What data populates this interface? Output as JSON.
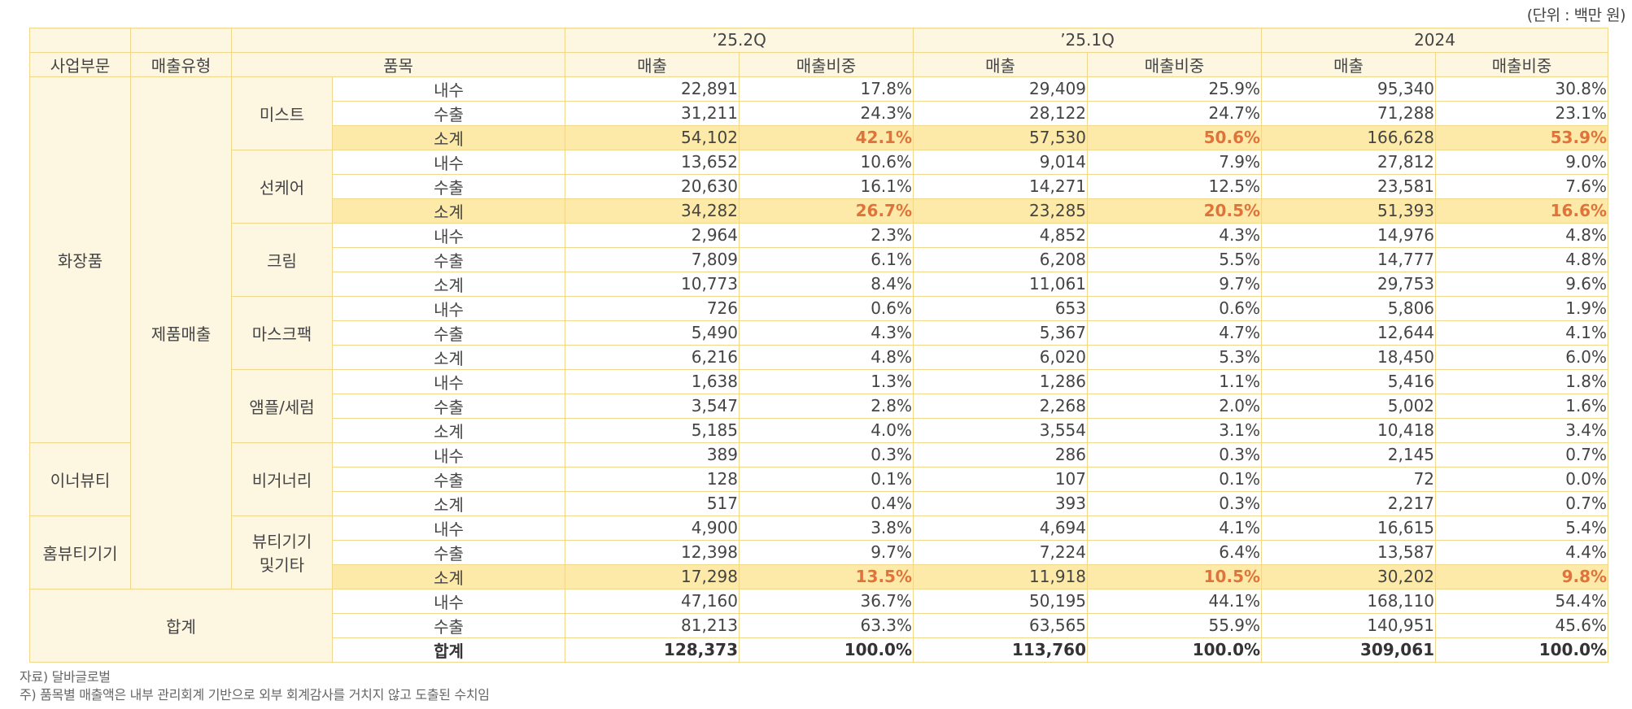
{
  "unit_note": "(단위 : 백만 원)",
  "headers": {
    "segment": "사업부문",
    "sales_type": "매출유형",
    "item": "품목",
    "periods": [
      "’25.2Q",
      "’25.1Q",
      "2024"
    ],
    "sales": "매출",
    "share": "매출비중"
  },
  "segments": {
    "cosmetics": "화장품",
    "inner_beauty": "이너뷰티",
    "home_beauty": "홈뷰티기기",
    "total": "합계"
  },
  "sales_type_value": "제품매출",
  "row_labels": {
    "domestic": "내수",
    "export": "수출",
    "subtotal": "소계",
    "total": "합계"
  },
  "groups": [
    {
      "name": "미스트",
      "highlight": true,
      "rows": [
        {
          "label": "내수",
          "v": [
            "22,891",
            "17.8%",
            "29,409",
            "25.9%",
            "95,340",
            "30.8%"
          ]
        },
        {
          "label": "수출",
          "v": [
            "31,211",
            "24.3%",
            "28,122",
            "24.7%",
            "71,288",
            "23.1%"
          ]
        },
        {
          "label": "소계",
          "v": [
            "54,102",
            "42.1%",
            "57,530",
            "50.6%",
            "166,628",
            "53.9%"
          ]
        }
      ]
    },
    {
      "name": "선케어",
      "highlight": true,
      "rows": [
        {
          "label": "내수",
          "v": [
            "13,652",
            "10.6%",
            "9,014",
            "7.9%",
            "27,812",
            "9.0%"
          ]
        },
        {
          "label": "수출",
          "v": [
            "20,630",
            "16.1%",
            "14,271",
            "12.5%",
            "23,581",
            "7.6%"
          ]
        },
        {
          "label": "소계",
          "v": [
            "34,282",
            "26.7%",
            "23,285",
            "20.5%",
            "51,393",
            "16.6%"
          ]
        }
      ]
    },
    {
      "name": "크림",
      "highlight": false,
      "rows": [
        {
          "label": "내수",
          "v": [
            "2,964",
            "2.3%",
            "4,852",
            "4.3%",
            "14,976",
            "4.8%"
          ]
        },
        {
          "label": "수출",
          "v": [
            "7,809",
            "6.1%",
            "6,208",
            "5.5%",
            "14,777",
            "4.8%"
          ]
        },
        {
          "label": "소계",
          "v": [
            "10,773",
            "8.4%",
            "11,061",
            "9.7%",
            "29,753",
            "9.6%"
          ]
        }
      ]
    },
    {
      "name": "마스크팩",
      "highlight": false,
      "rows": [
        {
          "label": "내수",
          "v": [
            "726",
            "0.6%",
            "653",
            "0.6%",
            "5,806",
            "1.9%"
          ]
        },
        {
          "label": "수출",
          "v": [
            "5,490",
            "4.3%",
            "5,367",
            "4.7%",
            "12,644",
            "4.1%"
          ]
        },
        {
          "label": "소계",
          "v": [
            "6,216",
            "4.8%",
            "6,020",
            "5.3%",
            "18,450",
            "6.0%"
          ]
        }
      ]
    },
    {
      "name": "앰플/세럼",
      "highlight": false,
      "rows": [
        {
          "label": "내수",
          "v": [
            "1,638",
            "1.3%",
            "1,286",
            "1.1%",
            "5,416",
            "1.8%"
          ]
        },
        {
          "label": "수출",
          "v": [
            "3,547",
            "2.8%",
            "2,268",
            "2.0%",
            "5,002",
            "1.6%"
          ]
        },
        {
          "label": "소계",
          "v": [
            "5,185",
            "4.0%",
            "3,554",
            "3.1%",
            "10,418",
            "3.4%"
          ]
        }
      ]
    },
    {
      "name": "비거너리",
      "highlight": false,
      "rows": [
        {
          "label": "내수",
          "v": [
            "389",
            "0.3%",
            "286",
            "0.3%",
            "2,145",
            "0.7%"
          ]
        },
        {
          "label": "수출",
          "v": [
            "128",
            "0.1%",
            "107",
            "0.1%",
            "72",
            "0.0%"
          ]
        },
        {
          "label": "소계",
          "v": [
            "517",
            "0.4%",
            "393",
            "0.3%",
            "2,217",
            "0.7%"
          ]
        }
      ]
    },
    {
      "name": "뷰티기기",
      "name2": "및기타",
      "highlight": true,
      "rows": [
        {
          "label": "내수",
          "v": [
            "4,900",
            "3.8%",
            "4,694",
            "4.1%",
            "16,615",
            "5.4%"
          ]
        },
        {
          "label": "수출",
          "v": [
            "12,398",
            "9.7%",
            "7,224",
            "6.4%",
            "13,587",
            "4.4%"
          ]
        },
        {
          "label": "소계",
          "v": [
            "17,298",
            "13.5%",
            "11,918",
            "10.5%",
            "30,202",
            "9.8%"
          ]
        }
      ]
    }
  ],
  "totals": [
    {
      "label": "내수",
      "v": [
        "47,160",
        "36.7%",
        "50,195",
        "44.1%",
        "168,110",
        "54.4%"
      ]
    },
    {
      "label": "수출",
      "v": [
        "81,213",
        "63.3%",
        "63,565",
        "55.9%",
        "140,951",
        "45.6%"
      ]
    },
    {
      "label": "합계",
      "v": [
        "128,373",
        "100.0%",
        "113,760",
        "100.0%",
        "309,061",
        "100.0%"
      ]
    }
  ],
  "notes": [
    "자료) 달바글로벌",
    "주) 품목별 매출액은 내부 관리회계 기반으로 외부 회계감사를 거치지 않고 도출된 수치임"
  ],
  "colors": {
    "border": "#f1d78a",
    "header_bg": "#fdf7e2",
    "subtotal_bg": "#fdeaa8",
    "accent": "#e0733a"
  }
}
